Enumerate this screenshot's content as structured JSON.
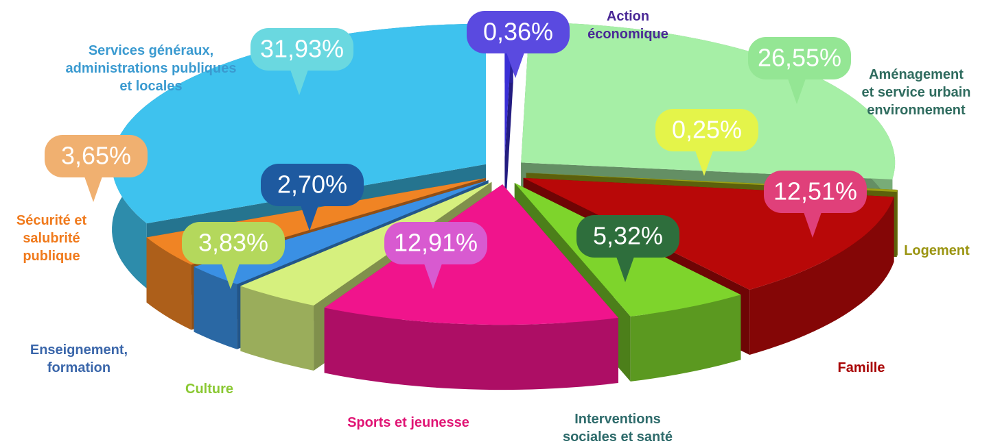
{
  "chart_data": {
    "type": "pie",
    "categories": [
      "Action\néconomique",
      "Aménagement\net service urbain\nenvironnement",
      "Logement",
      "Famille",
      "Interventions\nsociales et santé",
      "Sports et jeunesse",
      "Culture",
      "Enseignement,\nformation",
      "Sécurité et\nsalubrité\npublique",
      "Services généraux,\nadministrations publiques\net locales"
    ],
    "values": [
      0.36,
      26.55,
      0.25,
      12.51,
      5.32,
      12.91,
      3.83,
      2.7,
      3.65,
      31.93
    ],
    "value_labels": [
      "0,36%",
      "26,55%",
      "0,25%",
      "12,51%",
      "5,32%",
      "12,91%",
      "3,83%",
      "2,70%",
      "3,65%",
      "31,93%"
    ],
    "colors": [
      "#3a2fd6",
      "#a6efa6",
      "#9aa014",
      "#b80808",
      "#7ed42c",
      "#f0148c",
      "#d6f07e",
      "#3a90e4",
      "#f08424",
      "#3ec2ee"
    ],
    "bubble_colors": [
      "#5a4ae0",
      "#94e694",
      "#e4f44a",
      "#e0407a",
      "#2e6e3c",
      "#d85ad0",
      "#b4d85c",
      "#1e5aa0",
      "#f0b070",
      "#6ad8e0"
    ],
    "label_colors": [
      "#4a2896",
      "#2e6b5e",
      "#9a9410",
      "#a80000",
      "#2e6b6b",
      "#e01474",
      "#8ac832",
      "#3a66aa",
      "#f07a1c",
      "#3a9ad0"
    ]
  }
}
